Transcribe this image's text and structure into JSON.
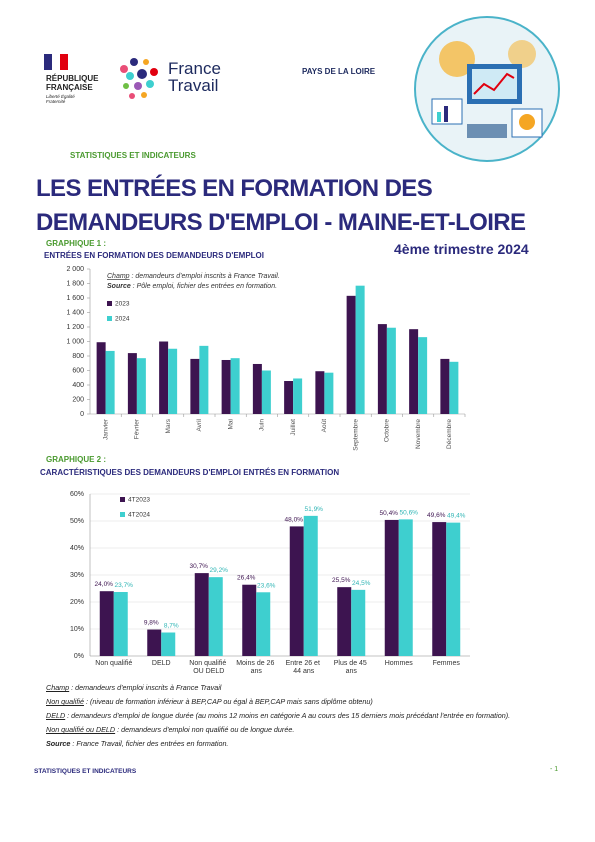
{
  "header": {
    "republic": "RÉPUBLIQUE FRANÇAISE",
    "motto": "Liberté Égalité Fraternité",
    "brand": "France Travail",
    "region": "PAYS DE LA LOIRE",
    "kicker": "STATISTIQUES ET INDICATEURS",
    "title": "LES ENTRÉES EN FORMATION DES DEMANDEURS D'EMPLOI - MAINE-ET-LOIRE",
    "period": "4ème trimestre 2024"
  },
  "chart_data": [
    {
      "type": "bar",
      "label": "GRAPHIQUE 1 :",
      "title": "ENTRÉES EN FORMATION DES DEMANDEURS D'EMPLOI",
      "annotations": [
        {
          "label": "Champ",
          "text": " : demandeurs d'emploi inscrits à France Travail."
        },
        {
          "label": "Source",
          "text": " : Pôle emploi, fichier des entrées en formation."
        }
      ],
      "categories": [
        "Janvier",
        "Février",
        "Mars",
        "Avril",
        "Mai",
        "Juin",
        "Juillet",
        "Août",
        "Septembre",
        "Octobre",
        "Novembre",
        "Décembre"
      ],
      "series": [
        {
          "name": "2023",
          "color": "#3d1450",
          "values": [
            990,
            840,
            1000,
            760,
            745,
            690,
            455,
            590,
            1630,
            1240,
            1170,
            760
          ]
        },
        {
          "name": "2024",
          "color": "#3ecfcf",
          "values": [
            870,
            770,
            900,
            940,
            770,
            600,
            490,
            570,
            1770,
            1190,
            1060,
            720
          ]
        }
      ],
      "ylim": [
        0,
        2000
      ],
      "yticks": [
        0,
        200,
        400,
        600,
        800,
        {
          "value": 1000,
          "label": "1 000"
        },
        {
          "value": 1200,
          "label": "1 200"
        },
        {
          "value": 1400,
          "label": "1 400"
        },
        {
          "value": 1600,
          "label": "1 600"
        },
        {
          "value": 1800,
          "label": "1 800"
        },
        {
          "value": 2000,
          "label": "2 000"
        }
      ],
      "grid": false
    },
    {
      "type": "bar",
      "label": "GRAPHIQUE 2 :",
      "title": "CARACTÉRISTIQUES DES DEMANDEURS D'EMPLOI ENTRÉS EN FORMATION",
      "categories": [
        "Non qualifié",
        "DELD",
        "Non qualifié OU DELD",
        "Moins de 26 ans",
        "Entre 26 et 44 ans",
        "Plus de 45 ans",
        "Hommes",
        "Femmes"
      ],
      "series": [
        {
          "name": "4T2023",
          "color": "#3d1450",
          "values": [
            24.0,
            9.8,
            30.7,
            26.4,
            48.0,
            25.5,
            50.4,
            49.6
          ],
          "value_labels": [
            "24,0%",
            "9,8%",
            "30,7%",
            "26,4%",
            "48,0%",
            "25,5%",
            "50,4%",
            "49,6%"
          ]
        },
        {
          "name": "4T2024",
          "color": "#3ecfcf",
          "values": [
            23.7,
            8.7,
            29.2,
            23.6,
            51.9,
            24.5,
            50.6,
            49.4
          ],
          "value_labels": [
            "23,7%",
            "8,7%",
            "29,2%",
            "23,6%",
            "51,9%",
            "24,5%",
            "50,6%",
            "49,4%"
          ]
        }
      ],
      "ylim": [
        0,
        60
      ],
      "yticks": [
        {
          "value": 0,
          "label": "0%"
        },
        {
          "value": 10,
          "label": "10%"
        },
        {
          "value": 20,
          "label": "20%"
        },
        {
          "value": 30,
          "label": "30%"
        },
        {
          "value": 40,
          "label": "40%"
        },
        {
          "value": 50,
          "label": "50%"
        },
        {
          "value": 60,
          "label": "60%"
        }
      ],
      "grid": true
    }
  ],
  "notes": [
    {
      "label": "Champ",
      "text": " : demandeurs d'emploi inscrits à France Travail"
    },
    {
      "label": "Non qualifié",
      "text": " : (niveau de formation inférieur à BEP,CAP ou égal à BEP,CAP mais sans diplôme obtenu)"
    },
    {
      "label": "DELD",
      "text": " : demandeurs d'emploi de longue durée (au moins 12 moins en catégorie A au cours des 15 derniers mois précédant l'entrée en formation)."
    },
    {
      "label": "Non qualifié ou DELD",
      "text": " : demandeurs d'emploi non qualifié ou de longue durée."
    },
    {
      "label": "Source",
      "text": " : France Travail, fichier des entrées en formation."
    }
  ],
  "footer": {
    "text": "STATISTIQUES ET INDICATEURS",
    "page": "- 1"
  }
}
